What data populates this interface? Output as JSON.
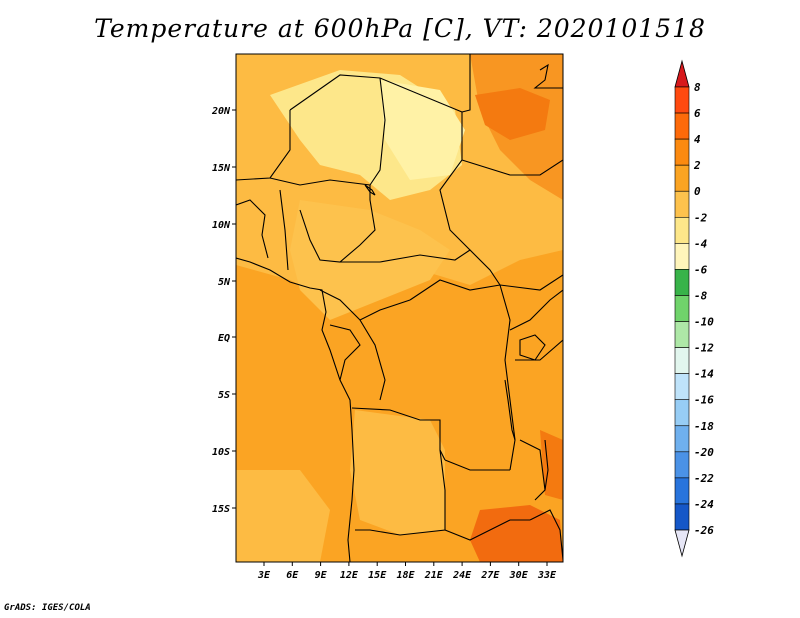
{
  "title": "Temperature at 600hPa [C], VT: 2020101518",
  "credit": "GrADS: IGES/COLA",
  "map": {
    "y_ticks": [
      "20N",
      "15N",
      "10N",
      "5N",
      "EQ",
      "5S",
      "10S",
      "15S"
    ],
    "x_ticks": [
      "3E",
      "6E",
      "9E",
      "12E",
      "15E",
      "18E",
      "21E",
      "24E",
      "27E",
      "30E",
      "33E"
    ]
  },
  "colorbar": {
    "labels": [
      "8",
      "6",
      "4",
      "2",
      "0",
      "-2",
      "-4",
      "-6",
      "-8",
      "-10",
      "-12",
      "-14",
      "-16",
      "-18",
      "-20",
      "-22",
      "-24",
      "-26"
    ],
    "colors": [
      "#fff7bc",
      "#fee391",
      "#fec44f",
      "#fb9a29",
      "#ec7014",
      "#cc4c02",
      "#e31a1c"
    ]
  }
}
